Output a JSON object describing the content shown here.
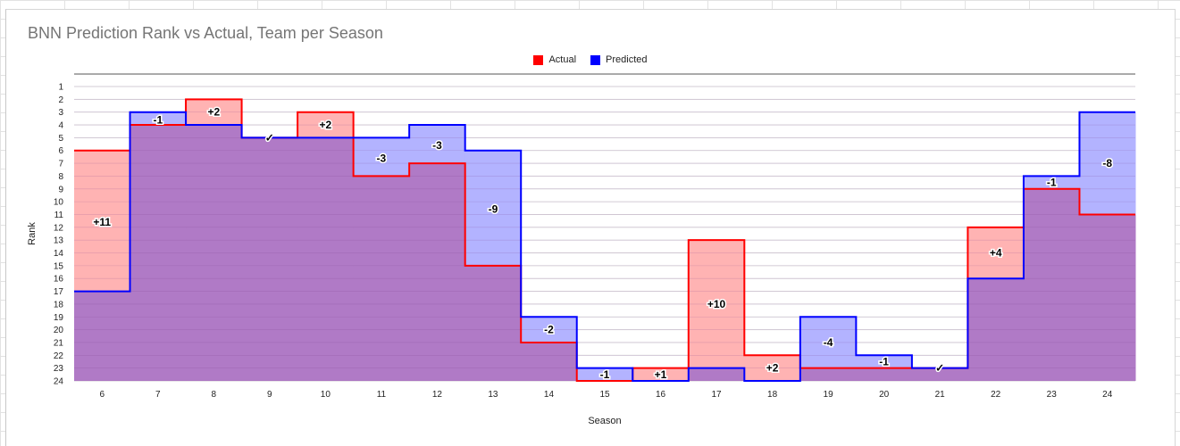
{
  "chart_data": {
    "type": "area",
    "step": true,
    "title": "BNN Prediction Rank vs Actual, Team per Season",
    "xlabel": "Season",
    "ylabel": "Rank",
    "categories": [
      "6",
      "7",
      "8",
      "9",
      "10",
      "11",
      "12",
      "13",
      "14",
      "15",
      "16",
      "17",
      "18",
      "19",
      "20",
      "21",
      "22",
      "23",
      "24"
    ],
    "y_ticks": [
      1,
      2,
      3,
      4,
      5,
      6,
      7,
      8,
      9,
      10,
      11,
      12,
      13,
      14,
      15,
      16,
      17,
      18,
      19,
      20,
      21,
      22,
      23,
      24
    ],
    "ylim": [
      24,
      1
    ],
    "y_inverted_note": "rank 1 at top",
    "legend_position": "top-center",
    "grid": true,
    "series": [
      {
        "name": "Actual",
        "color": "#ff0000",
        "fill": "#ffb3b3",
        "values": [
          6,
          4,
          2,
          5,
          3,
          8,
          7,
          15,
          21,
          24,
          23,
          13,
          22,
          23,
          23,
          23,
          12,
          9,
          11
        ]
      },
      {
        "name": "Predicted",
        "color": "#0000ff",
        "fill": "#b3b3ff",
        "values": [
          17,
          3,
          4,
          5,
          5,
          5,
          4,
          6,
          19,
          23,
          24,
          23,
          24,
          19,
          22,
          23,
          16,
          8,
          3
        ]
      }
    ],
    "annotations": [
      "+11",
      "-1",
      "+2",
      "✓",
      "+2",
      "-3",
      "-3",
      "-9",
      "-2",
      "-1",
      "+1",
      "+10",
      "+2",
      "-4",
      "-1",
      "✓",
      "+4",
      "-1",
      "-8"
    ],
    "annotation_y": [
      11.6,
      3.6,
      3.0,
      5.0,
      4.0,
      6.6,
      5.6,
      10.6,
      20.0,
      23.5,
      23.5,
      18.0,
      23.0,
      21.0,
      22.5,
      23.0,
      14.0,
      8.5,
      7.0
    ]
  },
  "legend_items": [
    {
      "label": "Actual",
      "color": "#ff0000"
    },
    {
      "label": "Predicted",
      "color": "#0000ff"
    }
  ],
  "overlap_color": "#b07ac6"
}
